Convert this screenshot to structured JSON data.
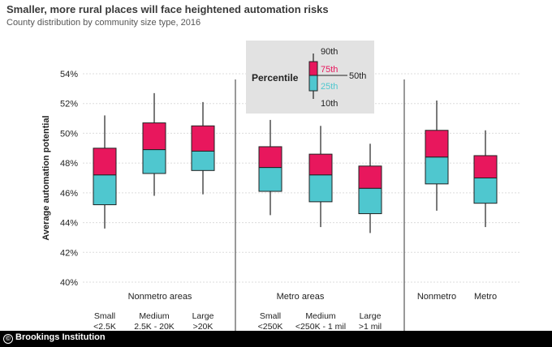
{
  "title": "Smaller, more rural places will face heightened automation risks",
  "subtitle": "County distribution by community size type, 2016",
  "credit": "Brookings Institution",
  "credit_icon": "copyright-icon",
  "colors": {
    "upper_box": "#e8175d",
    "lower_box": "#4fc7cf",
    "stroke": "#222222",
    "panel": "#e2e2e2"
  },
  "legend": {
    "title": "Percentile",
    "p90": "90th",
    "p75": "75th",
    "p50": "50th",
    "p25": "25th",
    "p10": "10th"
  },
  "chart_data": {
    "type": "boxplot",
    "ylabel": "Average automation potential",
    "ylim": [
      40,
      54
    ],
    "yticks": [
      "40%",
      "42%",
      "44%",
      "46%",
      "48%",
      "50%",
      "52%",
      "54%"
    ],
    "grid": true,
    "legend_position": "top-center",
    "groups": [
      {
        "name": "Nonmetro areas",
        "items": [
          {
            "label": "Small",
            "sub": "<2.5K",
            "p10": 43.6,
            "p25": 45.2,
            "p50": 47.2,
            "p75": 49.0,
            "p90": 51.2
          },
          {
            "label": "Medium",
            "sub": "2.5K - 20K",
            "p10": 45.8,
            "p25": 47.3,
            "p50": 48.9,
            "p75": 50.7,
            "p90": 52.7
          },
          {
            "label": "Large",
            "sub": ">20K",
            "p10": 45.9,
            "p25": 47.5,
            "p50": 48.8,
            "p75": 50.5,
            "p90": 52.1
          }
        ]
      },
      {
        "name": "Metro areas",
        "items": [
          {
            "label": "Small",
            "sub": "<250K",
            "p10": 44.5,
            "p25": 46.1,
            "p50": 47.7,
            "p75": 49.1,
            "p90": 50.9
          },
          {
            "label": "Medium",
            "sub": "<250K - 1 mil",
            "p10": 43.7,
            "p25": 45.4,
            "p50": 47.2,
            "p75": 48.6,
            "p90": 50.5
          },
          {
            "label": "Large",
            "sub": ">1 mil",
            "p10": 43.3,
            "p25": 44.6,
            "p50": 46.3,
            "p75": 47.8,
            "p90": 49.3
          }
        ]
      },
      {
        "name": "",
        "items": [
          {
            "label": "Nonmetro",
            "sub": "",
            "p10": 44.8,
            "p25": 46.6,
            "p50": 48.4,
            "p75": 50.2,
            "p90": 52.2
          },
          {
            "label": "Metro",
            "sub": "",
            "p10": 43.7,
            "p25": 45.3,
            "p50": 47.0,
            "p75": 48.5,
            "p90": 50.2
          }
        ]
      }
    ]
  }
}
